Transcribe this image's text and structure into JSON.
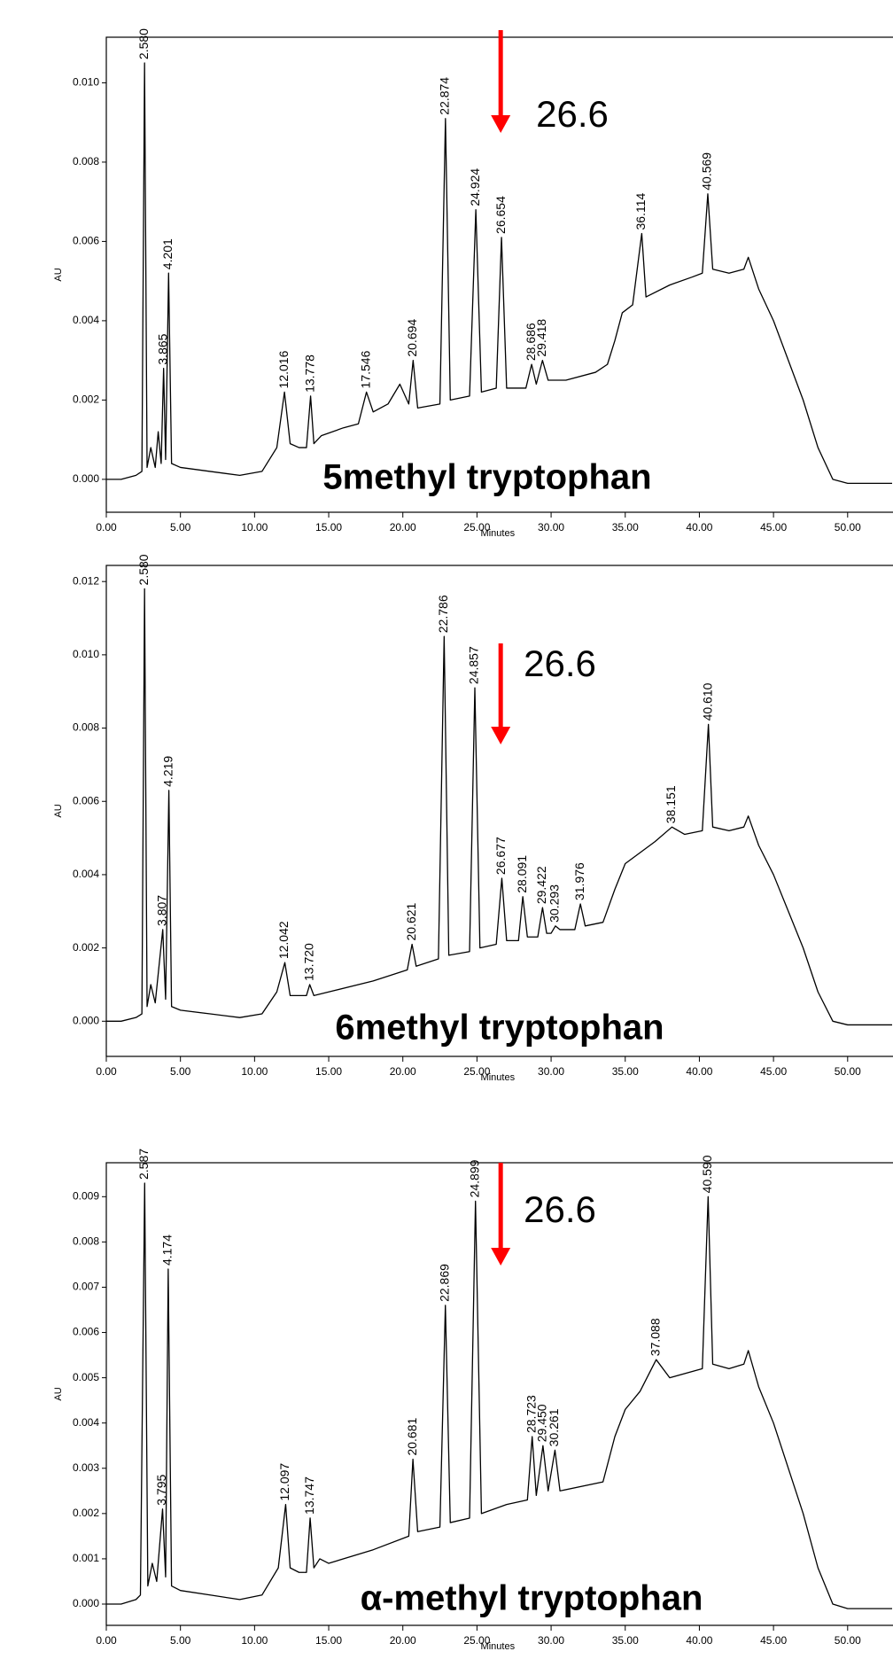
{
  "chart_data": [
    {
      "type": "line",
      "title": "5methyl tryptophan",
      "xlabel": "Minutes",
      "ylabel": "AU",
      "color": "#000000",
      "marker": 26.6,
      "marker_color": "#ff0000",
      "grid": false,
      "xlim": [
        0,
        53
      ],
      "ylim": [
        -0.00083,
        0.01115
      ],
      "xticks": [
        {
          "value": 0,
          "label": "0.00"
        },
        {
          "value": 5,
          "label": "5.00"
        },
        {
          "value": 10,
          "label": "10.00"
        },
        {
          "value": 15,
          "label": "15.00"
        },
        {
          "value": 20,
          "label": "20.00"
        },
        {
          "value": 25,
          "label": "25.00"
        },
        {
          "value": 30,
          "label": "30.00"
        },
        {
          "value": 35,
          "label": "35.00"
        },
        {
          "value": 40,
          "label": "40.00"
        },
        {
          "value": 45,
          "label": "45.00"
        },
        {
          "value": 50,
          "label": "50.00"
        }
      ],
      "yticks": [
        {
          "value": 0,
          "label": "0.000"
        },
        {
          "value": 0.002,
          "label": "0.002"
        },
        {
          "value": 0.004,
          "label": "0.004"
        },
        {
          "value": 0.006,
          "label": "0.006"
        },
        {
          "value": 0.008,
          "label": "0.008"
        },
        {
          "value": 0.01,
          "label": "0.010"
        }
      ],
      "x": [
        0,
        1,
        2,
        2.4,
        2.58,
        2.75,
        3,
        3.3,
        3.5,
        3.7,
        3.865,
        4.0,
        4.201,
        4.4,
        5,
        7,
        9,
        10.5,
        11.5,
        12.016,
        12.4,
        13,
        13.5,
        13.778,
        14,
        14.5,
        16,
        17,
        17.546,
        18,
        19,
        19.8,
        20.4,
        20.694,
        21,
        22.5,
        22.874,
        23.2,
        24.5,
        24.924,
        25.3,
        26.3,
        26.654,
        27,
        28.3,
        28.686,
        29,
        29.418,
        29.8,
        31,
        33,
        33.8,
        34.3,
        34.8,
        35.5,
        36.114,
        36.4,
        38,
        39.5,
        40.2,
        40.569,
        40.9,
        42,
        43,
        43.3,
        44,
        45,
        46,
        47,
        48,
        49,
        50,
        51,
        53
      ],
      "values": [
        0,
        0,
        0.0001,
        0.0002,
        0.0105,
        0.0003,
        0.0008,
        0.0003,
        0.0012,
        0.0004,
        0.0028,
        0.0005,
        0.0052,
        0.0004,
        0.0003,
        0.0002,
        0.0001,
        0.0002,
        0.0008,
        0.0022,
        0.0009,
        0.0008,
        0.0008,
        0.0021,
        0.0009,
        0.0011,
        0.0013,
        0.0014,
        0.0022,
        0.0017,
        0.0019,
        0.0024,
        0.0019,
        0.003,
        0.0018,
        0.0019,
        0.0091,
        0.002,
        0.0021,
        0.0068,
        0.0022,
        0.0023,
        0.0061,
        0.0023,
        0.0023,
        0.0029,
        0.0024,
        0.003,
        0.0025,
        0.0025,
        0.0027,
        0.0029,
        0.0035,
        0.0042,
        0.0044,
        0.0062,
        0.0046,
        0.0049,
        0.0051,
        0.0052,
        0.0072,
        0.0053,
        0.0052,
        0.0053,
        0.0056,
        0.0048,
        0.004,
        0.003,
        0.002,
        0.0008,
        0.0,
        -0.0001,
        -0.0001,
        -0.0001
      ],
      "peaks": [
        {
          "value": 2.58,
          "label": "2.580"
        },
        {
          "value": 3.865,
          "label": "3.865"
        },
        {
          "value": 4.201,
          "label": "4.201"
        },
        {
          "value": 12.016,
          "label": "12.016"
        },
        {
          "value": 13.778,
          "label": "13.778"
        },
        {
          "value": 17.546,
          "label": "17.546"
        },
        {
          "value": 20.694,
          "label": "20.694"
        },
        {
          "value": 22.874,
          "label": "22.874"
        },
        {
          "value": 24.924,
          "label": "24.924"
        },
        {
          "value": 26.654,
          "label": "26.654"
        },
        {
          "value": 28.686,
          "label": "28.686"
        },
        {
          "value": 29.418,
          "label": "29.418"
        },
        {
          "value": 36.114,
          "label": "36.114"
        },
        {
          "value": 40.569,
          "label": "40.569"
        }
      ]
    },
    {
      "type": "line",
      "title": "6methyl tryptophan",
      "xlabel": "Minutes",
      "ylabel": "AU",
      "color": "#000000",
      "marker": 26.6,
      "marker_color": "#ff0000",
      "grid": false,
      "xlim": [
        0,
        53
      ],
      "ylim": [
        -0.00096,
        0.01244
      ],
      "xticks": [
        {
          "value": 0,
          "label": "0.00"
        },
        {
          "value": 5,
          "label": "5.00"
        },
        {
          "value": 10,
          "label": "10.00"
        },
        {
          "value": 15,
          "label": "15.00"
        },
        {
          "value": 20,
          "label": "20.00"
        },
        {
          "value": 25,
          "label": "25.00"
        },
        {
          "value": 30,
          "label": "30.00"
        },
        {
          "value": 35,
          "label": "35.00"
        },
        {
          "value": 40,
          "label": "40.00"
        },
        {
          "value": 45,
          "label": "45.00"
        },
        {
          "value": 50,
          "label": "50.00"
        }
      ],
      "yticks": [
        {
          "value": 0,
          "label": "0.000"
        },
        {
          "value": 0.002,
          "label": "0.002"
        },
        {
          "value": 0.004,
          "label": "0.004"
        },
        {
          "value": 0.006,
          "label": "0.006"
        },
        {
          "value": 0.008,
          "label": "0.008"
        },
        {
          "value": 0.01,
          "label": "0.010"
        },
        {
          "value": 0.012,
          "label": "0.012"
        }
      ],
      "x": [
        0,
        1,
        2,
        2.4,
        2.58,
        2.75,
        3,
        3.3,
        3.807,
        4.0,
        4.219,
        4.4,
        5,
        7,
        9,
        10.5,
        11.5,
        12.042,
        12.4,
        13,
        13.5,
        13.72,
        14,
        15,
        18,
        20.3,
        20.621,
        20.9,
        22.4,
        22.786,
        23.1,
        24.5,
        24.857,
        25.2,
        26.3,
        26.677,
        27,
        27.8,
        28.091,
        28.4,
        29.1,
        29.422,
        29.7,
        30,
        30.293,
        30.6,
        31.6,
        31.976,
        32.3,
        33.5,
        34.3,
        35,
        36,
        37,
        38.151,
        39,
        40.2,
        40.61,
        40.9,
        42,
        43,
        43.3,
        44,
        45,
        46,
        47,
        48,
        49,
        50,
        51,
        53
      ],
      "values": [
        0,
        0,
        0.0001,
        0.0002,
        0.0118,
        0.0004,
        0.001,
        0.0005,
        0.0025,
        0.0006,
        0.0063,
        0.0004,
        0.0003,
        0.0002,
        0.0001,
        0.0002,
        0.0008,
        0.0016,
        0.0007,
        0.0007,
        0.0007,
        0.001,
        0.0007,
        0.0008,
        0.0011,
        0.0014,
        0.0021,
        0.0015,
        0.0017,
        0.0105,
        0.0018,
        0.0019,
        0.0091,
        0.002,
        0.0021,
        0.0039,
        0.0022,
        0.0022,
        0.0034,
        0.0023,
        0.0023,
        0.0031,
        0.0024,
        0.0024,
        0.0026,
        0.0025,
        0.0025,
        0.0032,
        0.0026,
        0.0027,
        0.0036,
        0.0043,
        0.0046,
        0.0049,
        0.0053,
        0.0051,
        0.0052,
        0.0081,
        0.0053,
        0.0052,
        0.0053,
        0.0056,
        0.0048,
        0.004,
        0.003,
        0.002,
        0.0008,
        0.0,
        -0.0001,
        -0.0001,
        -0.0001
      ],
      "peaks": [
        {
          "value": 2.58,
          "label": "2.580"
        },
        {
          "value": 3.807,
          "label": "3.807"
        },
        {
          "value": 4.219,
          "label": "4.219"
        },
        {
          "value": 12.042,
          "label": "12.042"
        },
        {
          "value": 13.72,
          "label": "13.720"
        },
        {
          "value": 20.621,
          "label": "20.621"
        },
        {
          "value": 22.786,
          "label": "22.786"
        },
        {
          "value": 24.857,
          "label": "24.857"
        },
        {
          "value": 26.677,
          "label": "26.677"
        },
        {
          "value": 28.091,
          "label": "28.091"
        },
        {
          "value": 29.422,
          "label": "29.422"
        },
        {
          "value": 30.293,
          "label": "30.293"
        },
        {
          "value": 31.976,
          "label": "31.976"
        },
        {
          "value": 38.151,
          "label": "38.151"
        },
        {
          "value": 40.61,
          "label": "40.610"
        }
      ]
    },
    {
      "type": "line",
      "title": "α-methyl tryptophan",
      "xlabel": "Minutes",
      "ylabel": "AU",
      "color": "#000000",
      "marker": 26.6,
      "marker_color": "#ff0000",
      "grid": false,
      "xlim": [
        0,
        53
      ],
      "ylim": [
        -0.00047,
        0.00975
      ],
      "xticks": [
        {
          "value": 0,
          "label": "0.00"
        },
        {
          "value": 5,
          "label": "5.00"
        },
        {
          "value": 10,
          "label": "10.00"
        },
        {
          "value": 15,
          "label": "15.00"
        },
        {
          "value": 20,
          "label": "20.00"
        },
        {
          "value": 25,
          "label": "25.00"
        },
        {
          "value": 30,
          "label": "30.00"
        },
        {
          "value": 35,
          "label": "35.00"
        },
        {
          "value": 40,
          "label": "40.00"
        },
        {
          "value": 45,
          "label": "45.00"
        },
        {
          "value": 50,
          "label": "50.00"
        }
      ],
      "yticks": [
        {
          "value": 0,
          "label": "0.000"
        },
        {
          "value": 0.001,
          "label": "0.001"
        },
        {
          "value": 0.002,
          "label": "0.002"
        },
        {
          "value": 0.003,
          "label": "0.003"
        },
        {
          "value": 0.004,
          "label": "0.004"
        },
        {
          "value": 0.005,
          "label": "0.005"
        },
        {
          "value": 0.006,
          "label": "0.006"
        },
        {
          "value": 0.007,
          "label": "0.007"
        },
        {
          "value": 0.008,
          "label": "0.008"
        },
        {
          "value": 0.009,
          "label": "0.009"
        }
      ],
      "x": [
        0,
        1,
        2,
        2.3,
        2.587,
        2.8,
        3.1,
        3.4,
        3.795,
        4.0,
        4.174,
        4.4,
        5,
        7,
        9,
        10.5,
        11.6,
        12.097,
        12.4,
        13,
        13.5,
        13.747,
        14,
        14.4,
        15,
        18,
        20.4,
        20.681,
        21,
        22.5,
        22.869,
        23.2,
        24.5,
        24.899,
        25.3,
        27,
        28.4,
        28.723,
        29,
        29.45,
        29.8,
        30.261,
        30.6,
        33.5,
        34.3,
        35,
        36,
        37.088,
        38,
        40.2,
        40.59,
        40.9,
        42,
        43,
        43.3,
        44,
        45,
        46,
        47,
        48,
        49,
        50,
        51,
        53
      ],
      "values": [
        0,
        0,
        0.0001,
        0.0002,
        0.0093,
        0.0004,
        0.0009,
        0.0005,
        0.0021,
        0.0006,
        0.0074,
        0.0004,
        0.0003,
        0.0002,
        0.0001,
        0.0002,
        0.0008,
        0.0022,
        0.0008,
        0.0007,
        0.0007,
        0.0019,
        0.0008,
        0.001,
        0.0009,
        0.0012,
        0.0015,
        0.0032,
        0.0016,
        0.0017,
        0.0066,
        0.0018,
        0.0019,
        0.0089,
        0.002,
        0.0022,
        0.0023,
        0.0037,
        0.0024,
        0.0035,
        0.0025,
        0.0034,
        0.0025,
        0.0027,
        0.0037,
        0.0043,
        0.0047,
        0.0054,
        0.005,
        0.0052,
        0.009,
        0.0053,
        0.0052,
        0.0053,
        0.0056,
        0.0048,
        0.004,
        0.003,
        0.002,
        0.0008,
        0.0,
        -0.0001,
        -0.0001,
        -0.0001
      ],
      "peaks": [
        {
          "value": 2.587,
          "label": "2.587"
        },
        {
          "value": 3.795,
          "label": "3.795"
        },
        {
          "value": 4.174,
          "label": "4.174"
        },
        {
          "value": 12.097,
          "label": "12.097"
        },
        {
          "value": 13.747,
          "label": "13.747"
        },
        {
          "value": 20.681,
          "label": "20.681"
        },
        {
          "value": 22.869,
          "label": "22.869"
        },
        {
          "value": 24.899,
          "label": "24.899"
        },
        {
          "value": 28.723,
          "label": "28.723"
        },
        {
          "value": 29.45,
          "label": "29.450"
        },
        {
          "value": 30.261,
          "label": "30.261"
        },
        {
          "value": 37.088,
          "label": "37.088"
        },
        {
          "value": 40.59,
          "label": "40.590"
        }
      ]
    }
  ]
}
